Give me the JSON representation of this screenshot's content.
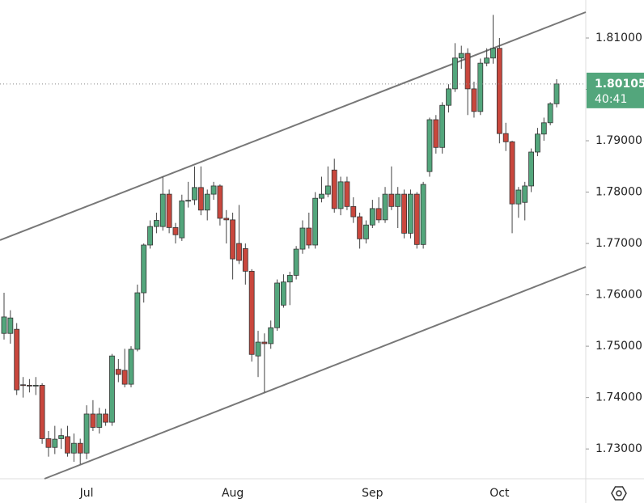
{
  "chart_data": {
    "type": "candlestick",
    "categories": [
      null,
      null,
      null,
      null,
      null,
      null,
      null,
      null,
      null,
      null,
      null,
      null,
      null,
      "Jul",
      null,
      null,
      null,
      null,
      null,
      null,
      null,
      null,
      null,
      null,
      null,
      null,
      null,
      null,
      null,
      null,
      null,
      null,
      null,
      null,
      null,
      null,
      "Aug",
      null,
      null,
      null,
      null,
      null,
      null,
      null,
      null,
      null,
      null,
      null,
      null,
      null,
      null,
      null,
      null,
      null,
      null,
      null,
      null,
      null,
      "Sep",
      null,
      null,
      null,
      null,
      null,
      null,
      null,
      null,
      null,
      null,
      null,
      null,
      null,
      null,
      null,
      null,
      null,
      null,
      null,
      "Oct",
      null,
      null,
      null,
      null,
      null,
      null,
      null,
      null,
      null
    ],
    "open": [
      1.7525,
      1.7525,
      1.7533,
      1.7425,
      1.7424,
      1.7423,
      1.7424,
      1.732,
      1.7303,
      1.732,
      1.7324,
      1.7292,
      1.7311,
      1.7292,
      1.7368,
      1.7342,
      1.7368,
      1.7352,
      1.7455,
      1.7453,
      1.7426,
      1.7494,
      1.7604,
      1.7697,
      1.7733,
      1.7733,
      1.7796,
      1.7731,
      1.7711,
      1.7783,
      1.7785,
      1.7809,
      1.7765,
      1.7796,
      1.7812,
      1.7749,
      1.7746,
      1.77,
      1.769,
      1.7646,
      1.7481,
      1.7508,
      1.7505,
      1.7536,
      1.758,
      1.7625,
      1.7638,
      1.7689,
      1.773,
      1.7697,
      1.7788,
      1.7796,
      1.7843,
      1.7768,
      1.782,
      1.7772,
      1.7752,
      1.7709,
      1.7736,
      1.7768,
      1.7746,
      1.7796,
      1.7772,
      1.7796,
      1.772,
      1.7796,
      1.7698,
      1.784,
      1.7941,
      1.7887,
      1.7969,
      1.8001,
      1.8061,
      1.807,
      1.8001,
      1.7957,
      1.8051,
      1.8061,
      1.808,
      1.7914,
      1.7898,
      1.7777,
      1.778,
      1.7812,
      1.7878,
      1.7913,
      1.7935,
      1.7972
    ],
    "high": [
      1.7604,
      1.757,
      1.7545,
      1.744,
      1.7436,
      1.744,
      1.7428,
      1.7335,
      1.7345,
      1.734,
      1.7345,
      1.733,
      1.732,
      1.7385,
      1.7395,
      1.738,
      1.7378,
      1.7485,
      1.7475,
      1.7495,
      1.75,
      1.762,
      1.77,
      1.7745,
      1.776,
      1.783,
      1.7805,
      1.774,
      1.7795,
      1.782,
      1.785,
      1.785,
      1.7805,
      1.782,
      1.7815,
      1.7765,
      1.776,
      1.7775,
      1.77,
      1.765,
      1.753,
      1.7525,
      1.755,
      1.763,
      1.764,
      1.7645,
      1.7695,
      1.7745,
      1.776,
      1.78,
      1.783,
      1.785,
      1.7865,
      1.783,
      1.783,
      1.779,
      1.776,
      1.7745,
      1.7785,
      1.779,
      1.781,
      1.785,
      1.781,
      1.7805,
      1.7805,
      1.78,
      1.782,
      1.7945,
      1.795,
      1.7975,
      1.801,
      1.809,
      1.8085,
      1.808,
      1.8015,
      1.806,
      1.808,
      1.8145,
      1.81,
      1.7935,
      1.79,
      1.781,
      1.782,
      1.7885,
      1.7925,
      1.7945,
      1.7975,
      1.802
    ],
    "low": [
      1.7513,
      1.7505,
      1.7405,
      1.74,
      1.741,
      1.7405,
      1.731,
      1.7285,
      1.729,
      1.73,
      1.7285,
      1.7275,
      1.727,
      1.728,
      1.7335,
      1.733,
      1.7345,
      1.7345,
      1.743,
      1.742,
      1.742,
      1.749,
      1.7585,
      1.769,
      1.772,
      1.7725,
      1.772,
      1.77,
      1.7705,
      1.777,
      1.7775,
      1.7755,
      1.7745,
      1.7785,
      1.7735,
      1.77,
      1.763,
      1.766,
      1.762,
      1.747,
      1.744,
      1.741,
      1.7495,
      1.753,
      1.7575,
      1.758,
      1.763,
      1.768,
      1.769,
      1.769,
      1.778,
      1.779,
      1.776,
      1.7755,
      1.7765,
      1.774,
      1.769,
      1.77,
      1.773,
      1.774,
      1.774,
      1.7765,
      1.773,
      1.771,
      1.771,
      1.769,
      1.769,
      1.783,
      1.7875,
      1.7875,
      1.7955,
      1.7995,
      1.804,
      1.795,
      1.7945,
      1.795,
      1.8045,
      1.805,
      1.7895,
      1.788,
      1.772,
      1.775,
      1.7745,
      1.78,
      1.787,
      1.79,
      1.793,
      1.7965
    ],
    "close": [
      1.7557,
      1.7555,
      1.7415,
      1.7424,
      1.7423,
      1.7424,
      1.732,
      1.7303,
      1.7319,
      1.7326,
      1.7292,
      1.7311,
      1.7292,
      1.7368,
      1.7342,
      1.7368,
      1.7352,
      1.7481,
      1.7445,
      1.7426,
      1.7494,
      1.7604,
      1.7697,
      1.7733,
      1.7745,
      1.7796,
      1.7731,
      1.7717,
      1.7783,
      1.7784,
      1.7809,
      1.7765,
      1.7796,
      1.7812,
      1.7749,
      1.7746,
      1.767,
      1.7667,
      1.7646,
      1.7484,
      1.7508,
      1.7505,
      1.7536,
      1.7623,
      1.7625,
      1.7638,
      1.7689,
      1.773,
      1.7697,
      1.7788,
      1.7796,
      1.7812,
      1.7768,
      1.782,
      1.7772,
      1.7752,
      1.7709,
      1.7736,
      1.7768,
      1.7746,
      1.7796,
      1.7772,
      1.7796,
      1.772,
      1.7796,
      1.7698,
      1.7815,
      1.7941,
      1.7887,
      1.7969,
      1.8001,
      1.8061,
      1.807,
      1.8001,
      1.7957,
      1.8051,
      1.8061,
      1.808,
      1.7914,
      1.7898,
      1.7777,
      1.7804,
      1.7812,
      1.7878,
      1.7913,
      1.7935,
      1.7972,
      1.80105
    ],
    "up_color": "#53a67c",
    "down_color": "#c9473d",
    "ylim": [
      1.7242,
      1.8174
    ],
    "yticks": [
      {
        "value": 1.73,
        "label": "1.73000"
      },
      {
        "value": 1.74,
        "label": "1.74000"
      },
      {
        "value": 1.75,
        "label": "1.75000"
      },
      {
        "value": 1.76,
        "label": "1.76000"
      },
      {
        "value": 1.77,
        "label": "1.77000"
      },
      {
        "value": 1.78,
        "label": "1.78000"
      },
      {
        "value": 1.79,
        "label": "1.79000"
      },
      {
        "value": 1.8,
        "label": "1.80000"
      },
      {
        "value": 1.81,
        "label": "1.81000"
      }
    ],
    "last_price": {
      "value": 1.80105,
      "label": "1.80105"
    },
    "countdown": "40:41"
  }
}
